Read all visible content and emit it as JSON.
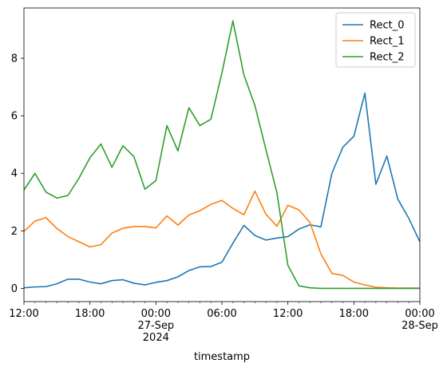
{
  "chart_data": {
    "type": "line",
    "xlabel": "timestamp",
    "ylabel": "",
    "title": "",
    "ylim": [
      -0.46,
      9.75
    ],
    "xlim_hours": [
      0,
      36
    ],
    "legend_position": "top-right",
    "grid": false,
    "x_ticks": [
      {
        "hour": 0,
        "lines": [
          "12:00"
        ]
      },
      {
        "hour": 6,
        "lines": [
          "18:00"
        ]
      },
      {
        "hour": 12,
        "lines": [
          "00:00",
          "27-Sep",
          "2024"
        ]
      },
      {
        "hour": 18,
        "lines": [
          "06:00"
        ]
      },
      {
        "hour": 24,
        "lines": [
          "12:00"
        ]
      },
      {
        "hour": 30,
        "lines": [
          "18:00"
        ]
      },
      {
        "hour": 36,
        "lines": [
          "00:00",
          "28-Sep"
        ]
      }
    ],
    "y_ticks": [
      0,
      2,
      4,
      6,
      8
    ],
    "x_hours": [
      0,
      1,
      2,
      3,
      4,
      5,
      6,
      7,
      8,
      9,
      10,
      11,
      12,
      13,
      14,
      15,
      16,
      17,
      18,
      19,
      20,
      21,
      22,
      23,
      24,
      25,
      26,
      27,
      28,
      29,
      30,
      31,
      32,
      33,
      34,
      35,
      36
    ],
    "series": [
      {
        "name": "Rect_0",
        "color": "#1f77b4",
        "values": [
          0.02,
          0.05,
          0.06,
          0.16,
          0.32,
          0.32,
          0.22,
          0.16,
          0.27,
          0.3,
          0.18,
          0.12,
          0.21,
          0.27,
          0.4,
          0.62,
          0.75,
          0.76,
          0.91,
          1.57,
          2.19,
          1.84,
          1.68,
          1.75,
          1.8,
          2.06,
          2.21,
          2.14,
          4.0,
          4.91,
          5.29,
          6.79,
          3.62,
          4.6,
          3.1,
          2.43,
          1.62
        ]
      },
      {
        "name": "Rect_1",
        "color": "#ff7f0e",
        "values": [
          1.98,
          2.34,
          2.46,
          2.08,
          1.8,
          1.62,
          1.44,
          1.52,
          1.92,
          2.09,
          2.15,
          2.15,
          2.1,
          2.52,
          2.2,
          2.55,
          2.7,
          2.92,
          3.06,
          2.78,
          2.56,
          3.38,
          2.58,
          2.16,
          2.89,
          2.73,
          2.3,
          1.2,
          0.52,
          0.45,
          0.22,
          0.12,
          0.04,
          0.02,
          0.01,
          0.01,
          0.01
        ]
      },
      {
        "name": "Rect_2",
        "color": "#2ca02c",
        "values": [
          3.42,
          4.0,
          3.35,
          3.14,
          3.23,
          3.83,
          4.54,
          5.02,
          4.21,
          4.96,
          4.58,
          3.45,
          3.75,
          5.66,
          4.78,
          6.28,
          5.66,
          5.88,
          7.49,
          9.3,
          7.42,
          6.36,
          4.83,
          3.33,
          0.8,
          0.09,
          0.02,
          0.0,
          0.0,
          0.0,
          0.0,
          0.0,
          0.0,
          0.0,
          0.0,
          0.0,
          0.0
        ]
      }
    ]
  }
}
